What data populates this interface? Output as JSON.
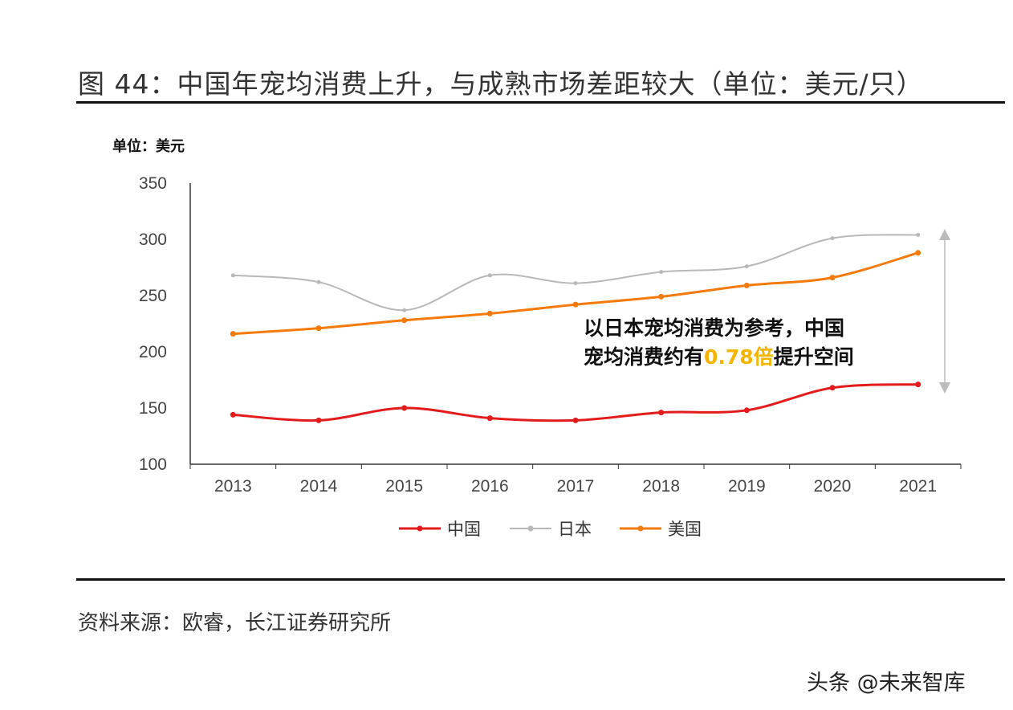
{
  "title": "图 44：中国年宠均消费上升，与成熟市场差距较大（单位：美元/只）",
  "source": "资料来源：欧睿，长江证券研究所",
  "watermark": "头条 @未来智库",
  "annotation": {
    "line1": "以日本宠均消费为参考，中国",
    "line2_pre": "宠均消费约有",
    "line2_hl": "0.78倍",
    "line2_post": "提升空间",
    "highlight_color": "#f5b400"
  },
  "chart_data": {
    "type": "line",
    "ylabel": "单位：美元",
    "categories": [
      "2013",
      "2014",
      "2015",
      "2016",
      "2017",
      "2018",
      "2019",
      "2020",
      "2021"
    ],
    "ylim": [
      100,
      350
    ],
    "yticks": [
      100,
      150,
      200,
      250,
      300,
      350
    ],
    "grid": false,
    "legend_position": "bottom",
    "series": [
      {
        "name": "中国",
        "color": "#e31b1b",
        "values": [
          144,
          139,
          150,
          141,
          139,
          146,
          148,
          168,
          171
        ]
      },
      {
        "name": "日本",
        "color": "#b8b8b8",
        "values": [
          268,
          262,
          237,
          268,
          261,
          271,
          276,
          301,
          304
        ]
      },
      {
        "name": "美国",
        "color": "#f57a0c",
        "values": [
          216,
          221,
          228,
          234,
          242,
          249,
          259,
          266,
          288
        ]
      }
    ]
  }
}
